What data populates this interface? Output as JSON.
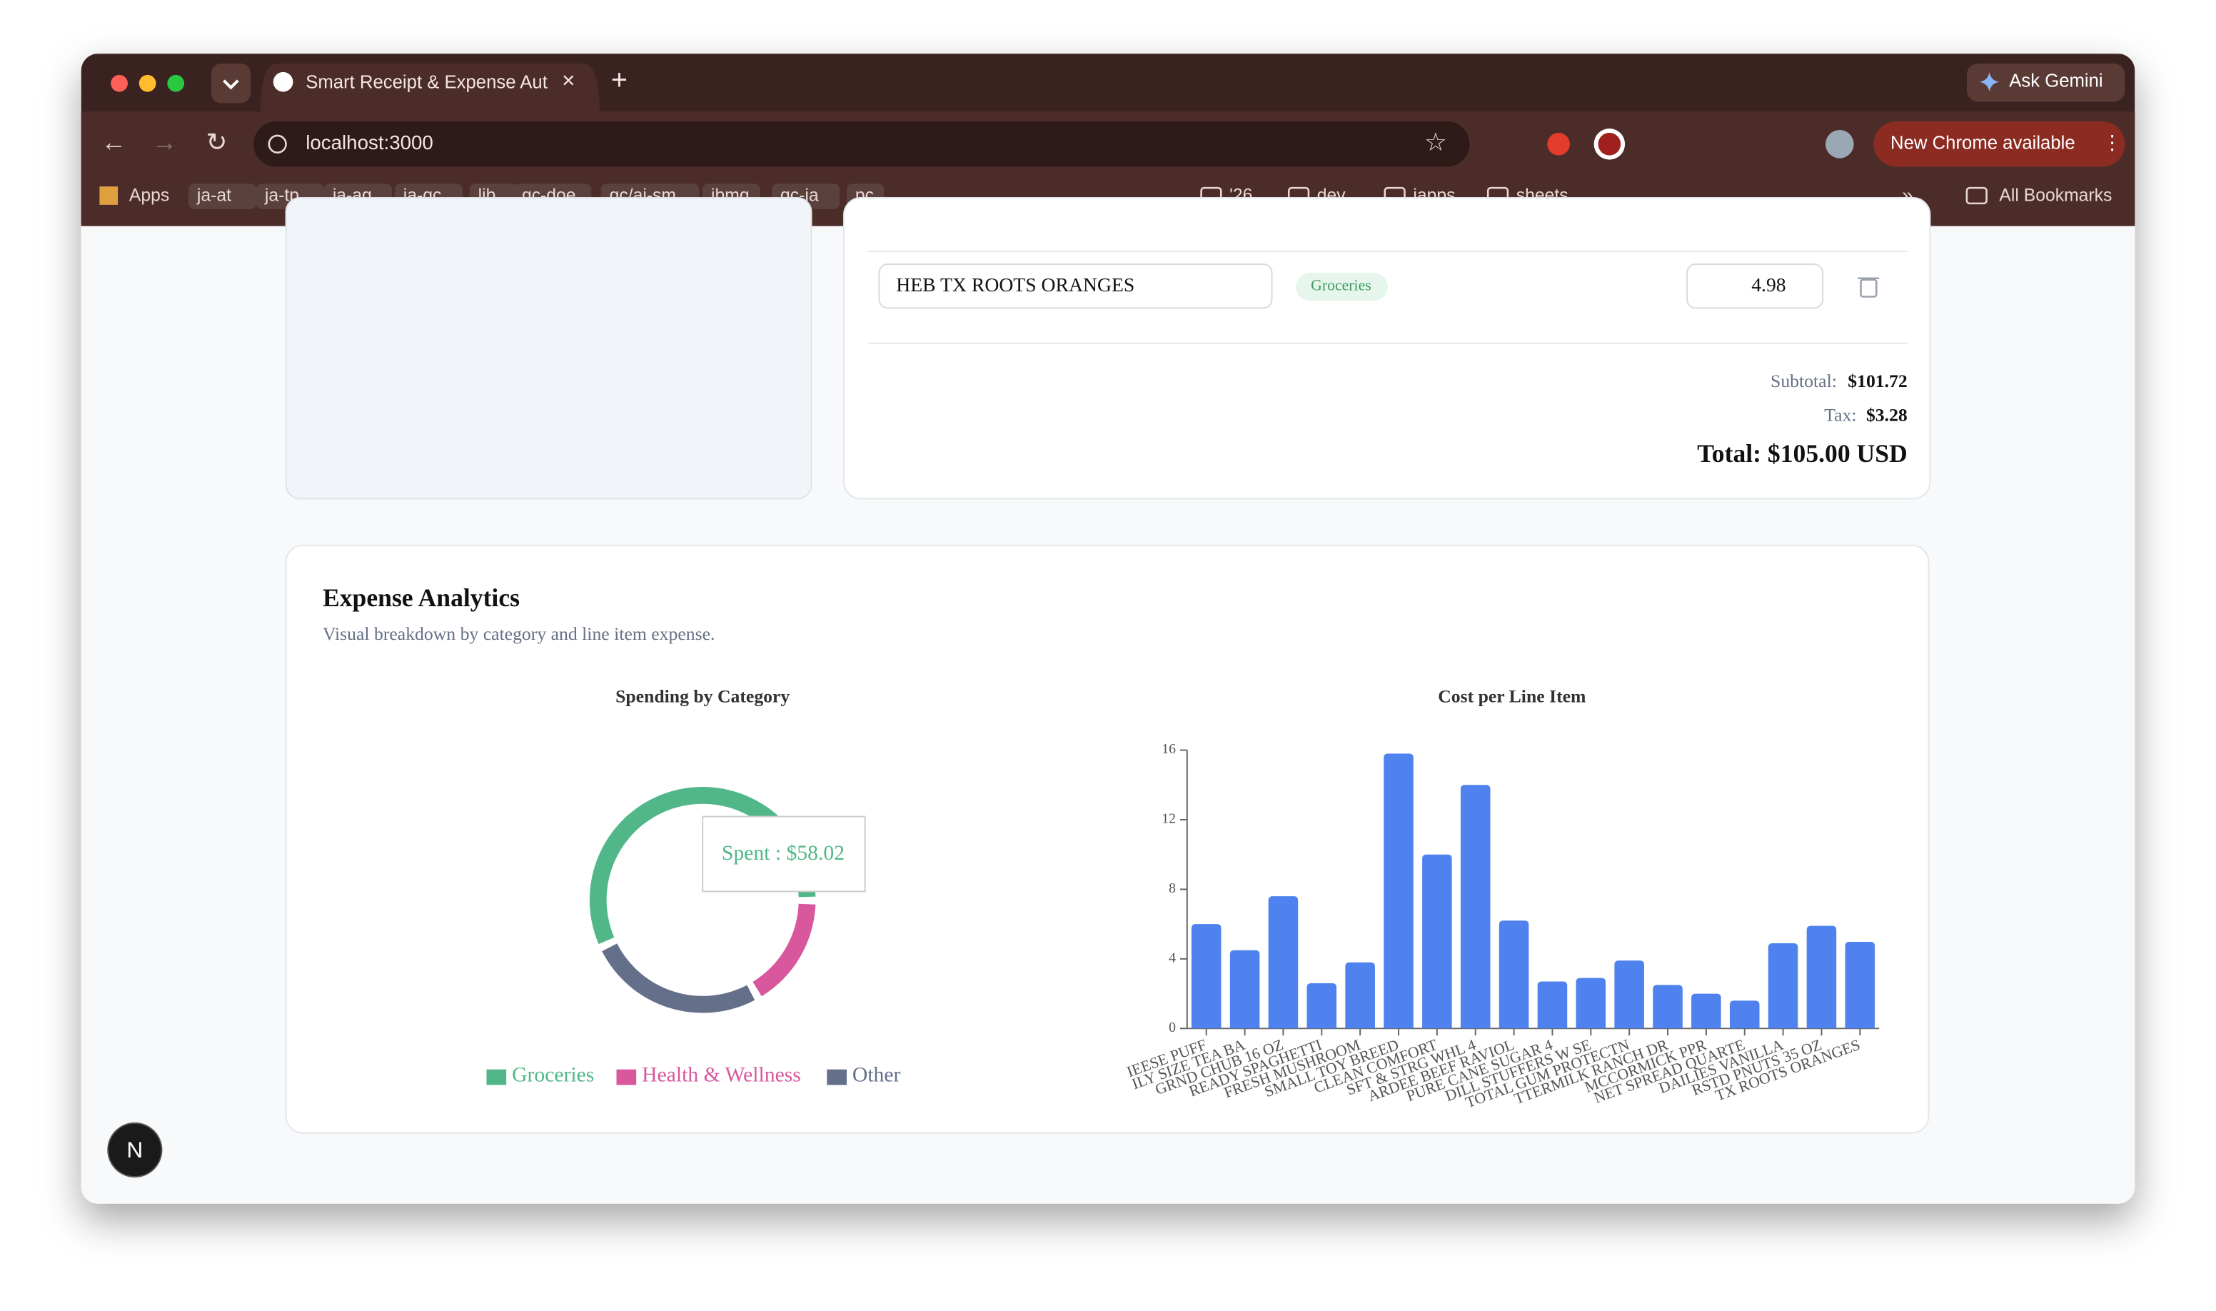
{
  "browser": {
    "tab_title": "Smart Receipt & Expense Aut",
    "url": "localhost:3000",
    "update_button": "New Chrome available",
    "gemini_button": "Ask Gemini",
    "bookmarks": [
      "Apps",
      "ja-at",
      "ja-tp",
      "ja-ag",
      "ja-qc",
      "lib",
      "qc-doe",
      "qc/ai-sm",
      "ibmq",
      "qc-ja",
      "pc",
      "'26",
      "dev",
      "japps",
      "sheets"
    ],
    "all_bookmarks": "All Bookmarks"
  },
  "receipt": {
    "item": {
      "name": "HEB TX ROOTS ORANGES",
      "category": "Groceries",
      "price": "4.98"
    },
    "subtotal_label": "Subtotal:",
    "subtotal": "$101.72",
    "tax_label": "Tax:",
    "tax": "$3.28",
    "total": "Total: $105.00 USD"
  },
  "analytics": {
    "title": "Expense Analytics",
    "subtitle": "Visual breakdown by category and line item expense.",
    "chart_data": [
      {
        "type": "donut",
        "title": "Spending by Category",
        "categories": [
          "Groceries",
          "Health & Wellness",
          "Other"
        ],
        "values": [
          58.02,
          17.0,
          26.7
        ],
        "colors": [
          "#52b788",
          "#d9579c",
          "#64708a"
        ],
        "tooltip": "Spent : $58.02"
      },
      {
        "type": "bar",
        "title": "Cost per Line Item",
        "categories": [
          "IEESE PUFF",
          "ILY SIZE TEA BA",
          "GRND CHUB 16 OZ",
          "READY SPAGHETTI",
          "FRESH MUSHROOM",
          "SMALL TOY BREED",
          "CLEAN COMFORT",
          "SFT & STRG WHL 4",
          "ARDEE BEEF RAVIOL",
          "PURE CANE SUGAR 4",
          "DILL STUFFERS W SE",
          "TOTAL GUM PROTECTN",
          "TTERMILK RANCH DR",
          "MCCORMICK PPR",
          "NET SPREAD QUARTE",
          "DAILIES VANILLA",
          "RSTD PNUTS 35 OZ",
          "TX ROOTS ORANGES"
        ],
        "values": [
          6.0,
          4.5,
          7.6,
          2.6,
          3.8,
          15.8,
          10.0,
          14.0,
          6.2,
          2.7,
          2.9,
          3.9,
          2.5,
          2.0,
          1.6,
          4.9,
          5.9,
          4.98
        ],
        "color": "#4f82ee",
        "ylim": [
          0,
          16
        ],
        "yticks": [
          0,
          4,
          8,
          12,
          16
        ]
      }
    ]
  }
}
